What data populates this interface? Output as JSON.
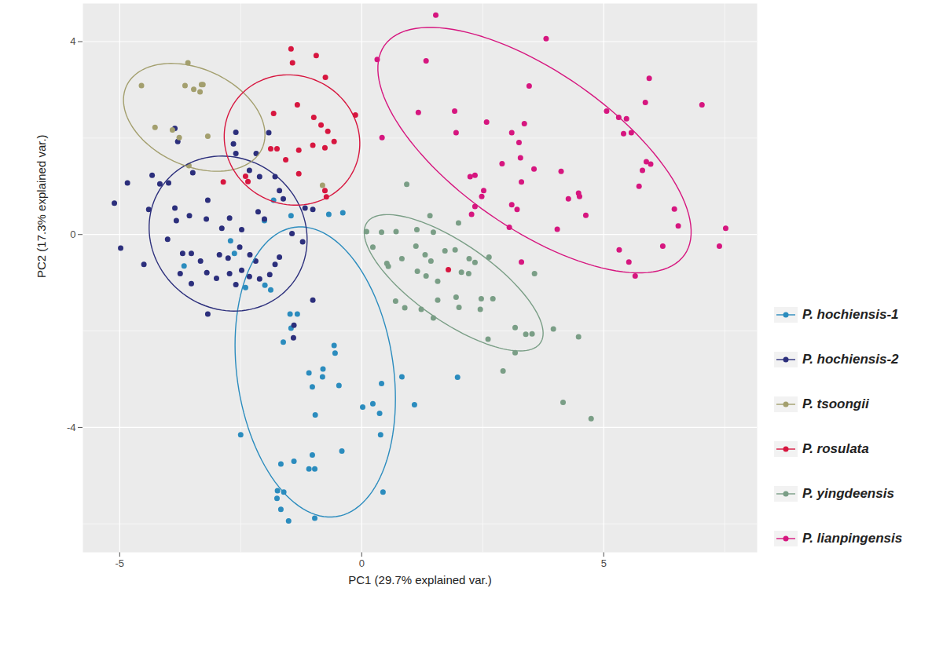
{
  "chart_data": {
    "type": "scatter",
    "x_label": "PC1 (29.7% explained var.)",
    "y_label": "PC2 (17.3% explained var.)",
    "xlim": [
      -5.76,
      8.17
    ],
    "ylim": [
      -6.59,
      4.79
    ],
    "xticks": [
      -5,
      0,
      5
    ],
    "yticks": [
      -4,
      0,
      4
    ],
    "grid": true,
    "legend": "right",
    "series": [
      {
        "name": "P. hochiensis-1",
        "color": "#2b8cbe",
        "x": [
          -0.39,
          -0.68,
          -1.46,
          -2.01,
          -1.82,
          -2.71,
          -2.63,
          -3.67,
          -2.4,
          -1.48,
          -1.46,
          -1.33,
          -1.62,
          -0.57,
          -0.55,
          -0.8,
          -1.09,
          -0.81,
          -0.47,
          -1.02,
          0.41,
          0.83,
          0.23,
          0.02,
          0.37,
          1.09,
          -0.96,
          0.39,
          -2.5,
          -0.41,
          -1.02,
          -1.4,
          -1.67,
          -1.09,
          -0.97,
          -1.74,
          -1.61,
          -1.75,
          0.44,
          -1.67,
          -1.51,
          -0.97,
          1.98,
          -2.0,
          -1.88
        ],
        "y": [
          0.45,
          0.42,
          0.39,
          0.29,
          0.71,
          -0.13,
          -0.39,
          -0.65,
          -1.1,
          -1.65,
          -1.94,
          -1.65,
          -2.23,
          -2.3,
          -2.46,
          -2.79,
          -2.87,
          -2.95,
          -3.13,
          -3.16,
          -3.09,
          -2.95,
          -3.51,
          -3.58,
          -3.71,
          -3.53,
          -3.74,
          -4.15,
          -4.15,
          -4.49,
          -4.57,
          -4.7,
          -4.76,
          -4.86,
          -4.86,
          -5.31,
          -5.34,
          -5.47,
          -5.34,
          -5.7,
          -5.94,
          -5.88,
          -2.96,
          -1.05,
          -1.15
        ],
        "ellipse": {
          "center": [
            -0.96,
            -2.85
          ],
          "major": [
            0.43,
            -3.0
          ],
          "minor": [
            1.6,
            0.23
          ]
        }
      },
      {
        "name": "P. hochiensis-2",
        "color": "#2c2f7c",
        "x": [
          -5.11,
          -4.84,
          -4.98,
          -4.5,
          -4.4,
          -4.33,
          -4.17,
          -3.99,
          -3.86,
          -3.8,
          -2.6,
          -2.65,
          -2.6,
          -1.92,
          -2.18,
          -2.32,
          -2.11,
          -1.79,
          -3.49,
          -3.18,
          -3.86,
          -3.56,
          -3.83,
          -3.21,
          -2.73,
          -2.89,
          -2.48,
          -2.14,
          -2.01,
          -4.01,
          -3.7,
          -3.52,
          -3.33,
          -2.94,
          -2.76,
          -2.52,
          -2.31,
          -2.19,
          -2.48,
          -2.32,
          -2.11,
          -1.9,
          -1.79,
          -1.7,
          -3.75,
          -3.2,
          -3.0,
          -2.73,
          -2.6,
          -3.18,
          -3.52,
          -1.44,
          -1.22,
          -1.4,
          -1.01,
          -1.41,
          -1.01,
          -1.17,
          -1.62,
          -1.7
        ],
        "y": [
          0.65,
          1.07,
          -0.28,
          -0.62,
          0.52,
          1.23,
          1.05,
          1.07,
          2.2,
          1.93,
          2.12,
          1.88,
          1.68,
          2.11,
          1.68,
          1.33,
          1.2,
          1.2,
          1.28,
          0.71,
          0.55,
          0.39,
          0.29,
          0.32,
          0.34,
          0.13,
          0.1,
          0.47,
          0.32,
          -0.1,
          -0.39,
          -0.39,
          -0.55,
          -0.42,
          -0.49,
          -0.26,
          -0.42,
          -0.55,
          -0.74,
          -0.87,
          -0.92,
          -0.83,
          -0.62,
          -0.47,
          -0.81,
          -0.79,
          -0.91,
          -0.81,
          -1.04,
          -1.65,
          -1.02,
          0.02,
          -0.15,
          -1.88,
          -1.36,
          -2.14,
          0.52,
          0.55,
          0.74,
          0.91
        ],
        "ellipse": {
          "center": [
            -2.76,
            0.02
          ],
          "major": [
            1.29,
            -1.08
          ],
          "minor": [
            1.0,
            1.19
          ]
        }
      },
      {
        "name": "P. tsoongii",
        "color": "#a39f6e",
        "x": [
          -4.55,
          -3.59,
          -3.65,
          -3.47,
          -3.31,
          -3.34,
          -3.28,
          -4.27,
          -3.91,
          -3.77,
          -3.18,
          -3.57,
          -0.81
        ],
        "y": [
          3.09,
          3.56,
          3.09,
          3.01,
          3.11,
          2.96,
          3.11,
          2.22,
          2.17,
          2.01,
          2.04,
          1.43,
          1.02
        ],
        "ellipse": {
          "center": [
            -3.46,
            2.43
          ],
          "major": [
            1.4,
            -0.65
          ],
          "minor": [
            0.42,
            0.91
          ]
        }
      },
      {
        "name": "P. rosulata",
        "color": "#d7163f",
        "x": [
          -1.46,
          -1.43,
          -0.94,
          -0.75,
          -1.33,
          -1.82,
          -0.99,
          -0.84,
          -0.13,
          -0.7,
          -0.57,
          -1.01,
          -1.3,
          -1.88,
          -1.75,
          -0.76,
          -1.3,
          -2.4,
          -2.86,
          -0.73,
          -0.76,
          -2.35,
          1.79,
          -1.57
        ],
        "y": [
          3.85,
          3.56,
          3.71,
          3.26,
          2.69,
          2.51,
          2.43,
          2.27,
          2.48,
          2.14,
          1.93,
          1.85,
          1.75,
          1.78,
          1.78,
          1.8,
          1.26,
          1.21,
          1.09,
          0.78,
          0.91,
          1.1,
          -0.73,
          1.55
        ],
        "ellipse": {
          "center": [
            -1.44,
            1.96
          ],
          "major": [
            1.23,
            -0.71
          ],
          "minor": [
            0.67,
            1.15
          ]
        }
      },
      {
        "name": "P. yingdeensis",
        "color": "#7a9e86",
        "x": [
          0.93,
          1.41,
          0.1,
          0.41,
          0.71,
          1.14,
          1.48,
          2.0,
          0.23,
          0.52,
          0.55,
          0.83,
          1.12,
          1.31,
          1.43,
          1.72,
          1.93,
          2.22,
          2.34,
          2.63,
          2.06,
          1.57,
          1.33,
          1.15,
          1.57,
          1.95,
          2.47,
          2.71,
          0.7,
          0.89,
          1.23,
          1.48,
          2.01,
          2.45,
          2.61,
          3.17,
          3.52,
          3.39,
          3.17,
          3.57,
          3.96,
          2.92,
          4.16,
          4.48,
          4.74,
          2.21
        ],
        "y": [
          1.04,
          0.39,
          0.06,
          0.05,
          0.06,
          0.1,
          0.05,
          0.24,
          -0.26,
          -0.6,
          -0.66,
          -0.5,
          -0.24,
          -0.42,
          -0.55,
          -0.34,
          -0.32,
          -0.5,
          -0.58,
          -0.47,
          -0.78,
          -0.97,
          -0.86,
          -0.76,
          -1.36,
          -1.3,
          -1.33,
          -1.33,
          -1.38,
          -1.52,
          -1.55,
          -1.73,
          -1.51,
          -1.55,
          -2.17,
          -1.93,
          -2.06,
          -2.07,
          -2.45,
          -0.81,
          -1.96,
          -2.83,
          -3.48,
          -2.12,
          -3.82,
          -0.81
        ],
        "ellipse": {
          "center": [
            1.9,
            -1.0
          ],
          "major": [
            1.79,
            -1.25
          ],
          "minor": [
            0.46,
            0.66
          ]
        }
      },
      {
        "name": "P. lianpingensis",
        "color": "#d6167f",
        "x": [
          1.53,
          0.32,
          1.33,
          3.81,
          0.42,
          1.17,
          1.92,
          1.95,
          2.58,
          3.46,
          3.36,
          3.1,
          3.25,
          3.56,
          3.3,
          2.9,
          3.28,
          2.24,
          2.34,
          2.52,
          2.48,
          2.34,
          2.27,
          3.1,
          3.21,
          3.05,
          4.04,
          4.48,
          4.5,
          4.27,
          4.63,
          5.06,
          5.31,
          5.47,
          5.41,
          5.57,
          5.86,
          5.94,
          5.8,
          5.88,
          5.97,
          5.73,
          6.46,
          6.54,
          6.22,
          7.03,
          5.32,
          5.52,
          5.65,
          3.3,
          7.39,
          7.52,
          4.12
        ],
        "y": [
          4.55,
          3.63,
          3.6,
          4.06,
          2.01,
          2.53,
          2.56,
          2.11,
          2.33,
          3.08,
          2.3,
          2.11,
          1.91,
          1.36,
          1.09,
          1.47,
          1.59,
          1.2,
          1.23,
          0.91,
          0.79,
          0.58,
          0.42,
          0.62,
          0.52,
          0.15,
          0.11,
          0.86,
          0.79,
          0.74,
          0.4,
          2.56,
          2.43,
          2.4,
          2.09,
          2.11,
          2.74,
          3.24,
          1.33,
          1.51,
          1.46,
          1.0,
          0.53,
          0.18,
          -0.24,
          2.69,
          -0.32,
          -0.57,
          -0.86,
          -0.57,
          -0.24,
          0.13,
          1.31
        ],
        "ellipse": {
          "center": [
            3.57,
            1.75
          ],
          "major": [
            3.1,
            -2.17
          ],
          "minor": [
            0.93,
            1.33
          ]
        }
      }
    ]
  }
}
